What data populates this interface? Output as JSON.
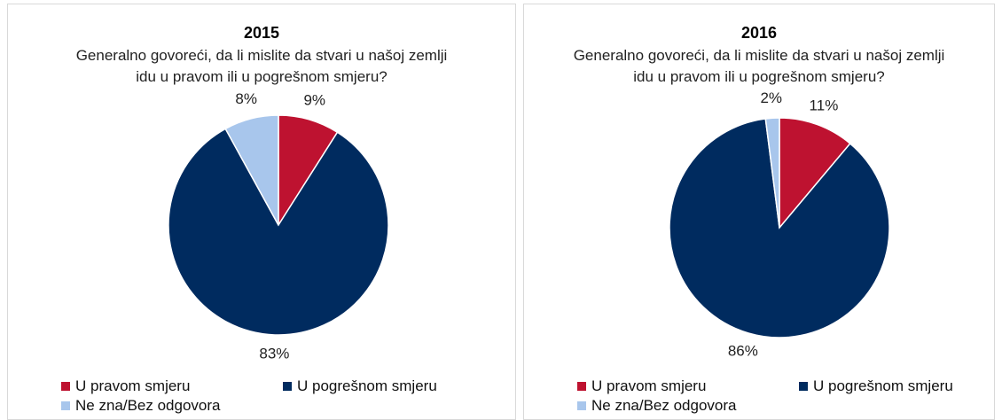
{
  "chart_data": [
    {
      "type": "pie",
      "title": "2015",
      "subtitle": "Generalno govoreći, da li mislite da stvari u našoj zemlji idu u pravom ili u pogrešnom smjeru?",
      "categories": [
        "U pravom smjeru",
        "U pogrešnom smjeru",
        "Ne zna/Bez odgovora"
      ],
      "values": [
        9,
        83,
        8
      ],
      "value_labels": [
        "9%",
        "83%",
        "8%"
      ],
      "colors": [
        "#be1230",
        "#002b5f",
        "#a8c6ec"
      ]
    },
    {
      "type": "pie",
      "title": "2016",
      "subtitle": "Generalno govoreći, da li mislite da stvari u našoj zemlji idu u pravom ili u pogrešnom smjeru?",
      "categories": [
        "U pravom smjeru",
        "U pogrešnom smjeru",
        "Ne zna/Bez odgovora"
      ],
      "values": [
        11,
        86,
        2
      ],
      "value_labels": [
        "11%",
        "86%",
        "2%"
      ],
      "colors": [
        "#be1230",
        "#002b5f",
        "#a8c6ec"
      ]
    }
  ]
}
